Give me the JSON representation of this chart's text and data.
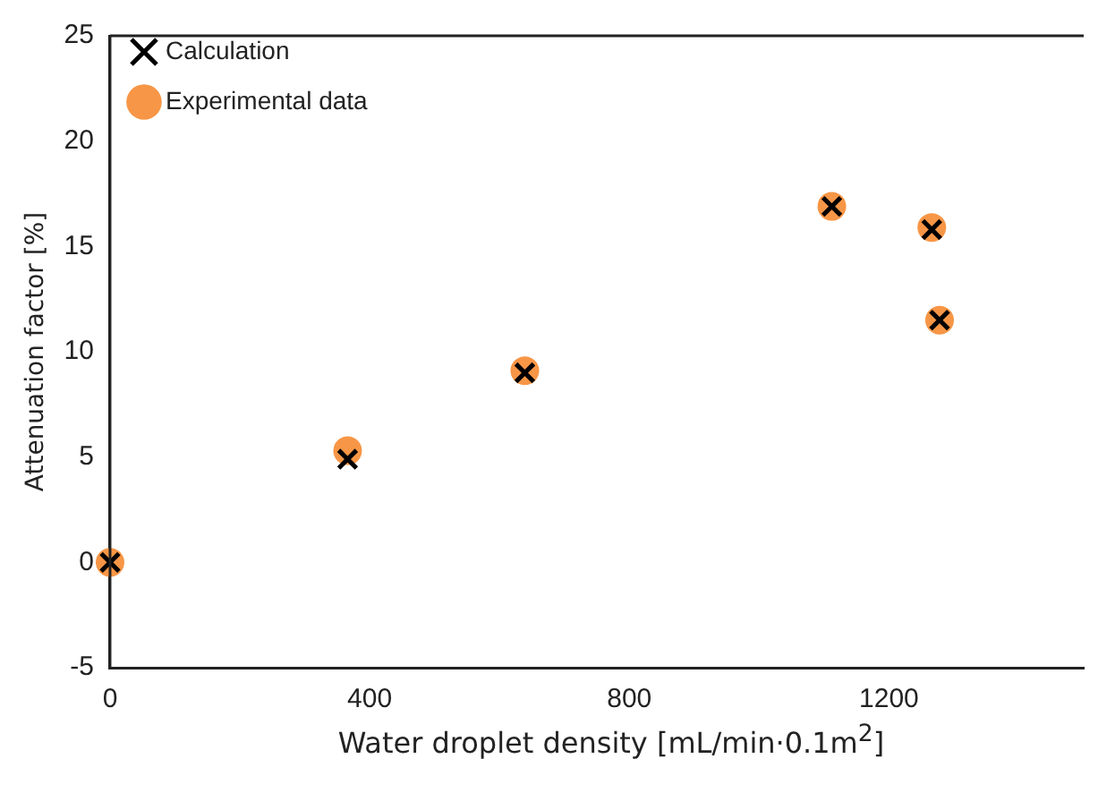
{
  "chart_data": {
    "type": "scatter",
    "xlabel": "Water droplet density [mL/min·0.1m$^{2}$]",
    "ylabel": "Attenuation factor [%]",
    "xlim": [
      0,
      1500
    ],
    "xticks": [
      0,
      400,
      800,
      1200
    ],
    "ylim": [
      -5,
      25
    ],
    "yticks": [
      -5,
      0,
      5,
      10,
      15,
      20,
      25
    ],
    "grid": false,
    "legend": "top left",
    "series": [
      {
        "name": "Experimental data",
        "color": "#f79646",
        "marker": "circle",
        "x": [
          0,
          366,
          639,
          1112,
          1266,
          1278
        ],
        "values": [
          0,
          5.3,
          9.1,
          16.9,
          15.9,
          11.5
        ]
      },
      {
        "name": "Calculation",
        "color": "#000000",
        "marker": "cross",
        "x": [
          0,
          366,
          639,
          1112,
          1266,
          1278
        ],
        "values": [
          0,
          4.9,
          9.0,
          16.9,
          15.8,
          11.5
        ]
      }
    ]
  }
}
